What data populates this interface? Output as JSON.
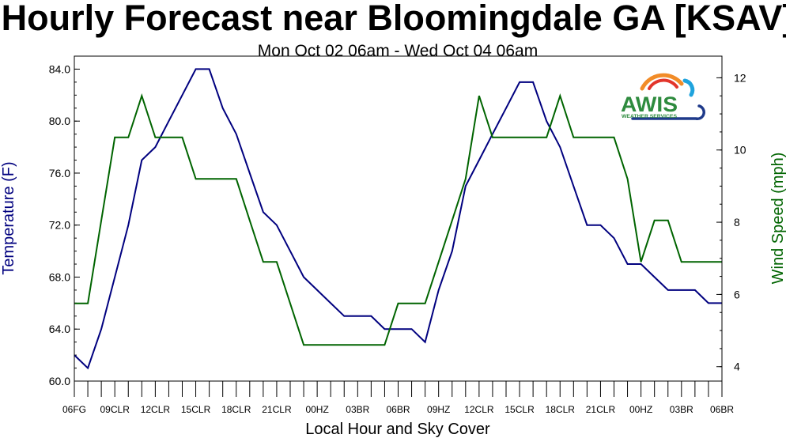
{
  "chart_data": {
    "type": "line",
    "title": "Hourly Forecast near Bloomingdale GA [KSAV]",
    "subtitle": "Mon Oct 02 06am - Wed Oct 04 06am",
    "xlabel": "Local Hour and Sky Cover",
    "ylabel_left": "Temperature (F)",
    "ylabel_right": "Wind Speed (mph)",
    "ylim_left": [
      60,
      85
    ],
    "ylim_right": [
      3.6,
      12.6
    ],
    "yticks_left": [
      "60.0",
      "64.0",
      "68.0",
      "72.0",
      "76.0",
      "80.0",
      "84.0"
    ],
    "yticks_right": [
      "4",
      "6",
      "8",
      "10",
      "12"
    ],
    "x_tick_labels": [
      "06FG",
      "09CLR",
      "12CLR",
      "15CLR",
      "18CLR",
      "21CLR",
      "00HZ",
      "03BR",
      "06BR",
      "09HZ",
      "12CLR",
      "15CLR",
      "18CLR",
      "21CLR",
      "00HZ",
      "03BR",
      "06BR"
    ],
    "x_hours": [
      0,
      48
    ],
    "grid": false,
    "series": [
      {
        "name": "Temperature",
        "axis": "left",
        "color": "#00007f",
        "x": [
          0,
          1,
          2,
          3,
          4,
          5,
          6,
          7,
          8,
          9,
          10,
          11,
          12,
          13,
          14,
          15,
          16,
          17,
          18,
          19,
          20,
          21,
          22,
          23,
          24,
          25,
          26,
          27,
          28,
          29,
          30,
          31,
          32,
          33,
          34,
          35,
          36,
          37,
          38,
          39,
          40,
          41,
          42,
          43,
          44,
          45,
          46,
          47,
          48
        ],
        "values": [
          62,
          61,
          64,
          68,
          72,
          77,
          78,
          80,
          82,
          84,
          84,
          81,
          79,
          76,
          73,
          72,
          70,
          68,
          67,
          66,
          65,
          65,
          65,
          64,
          64,
          64,
          63,
          67,
          70,
          75,
          77,
          79,
          81,
          83,
          83,
          80,
          78,
          75,
          72,
          72,
          71,
          69,
          69,
          68,
          67,
          67,
          67,
          66,
          66
        ]
      },
      {
        "name": "Wind Speed",
        "axis": "right",
        "color": "#006400",
        "x": [
          0,
          1,
          2,
          3,
          4,
          5,
          6,
          7,
          8,
          9,
          10,
          11,
          12,
          13,
          14,
          15,
          16,
          17,
          18,
          19,
          20,
          21,
          22,
          23,
          24,
          25,
          26,
          27,
          28,
          29,
          30,
          31,
          32,
          33,
          34,
          35,
          36,
          37,
          38,
          39,
          40,
          41,
          42,
          43,
          44,
          45,
          46,
          47,
          48
        ],
        "values": [
          5.75,
          5.75,
          8.05,
          10.35,
          10.35,
          11.5,
          10.35,
          10.35,
          10.35,
          9.2,
          9.2,
          9.2,
          9.2,
          8.05,
          6.9,
          6.9,
          5.75,
          4.6,
          4.6,
          4.6,
          4.6,
          4.6,
          4.6,
          4.6,
          5.75,
          5.75,
          5.75,
          6.9,
          8.05,
          9.2,
          11.5,
          10.35,
          10.35,
          10.35,
          10.35,
          10.35,
          11.5,
          10.35,
          10.35,
          10.35,
          10.35,
          9.2,
          6.9,
          8.05,
          8.05,
          6.9,
          6.9,
          6.9,
          6.9
        ]
      }
    ]
  },
  "logo": {
    "name": "AWIS",
    "tagline": "WEATHER SERVICES",
    "colors": {
      "text": "#2e8b3e",
      "cloud": "#1f3a8a",
      "arc_orange": "#f28c28",
      "arc_red": "#e2352b",
      "arc_blue": "#1fa3dd"
    }
  }
}
